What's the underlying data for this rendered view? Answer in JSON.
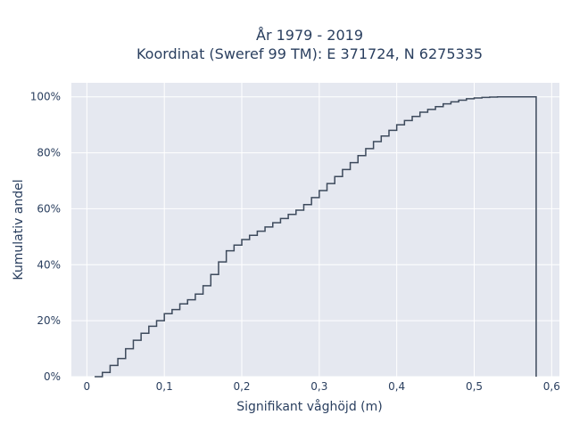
{
  "chart_data": {
    "type": "line",
    "line_shape": "step",
    "title_line1": "År 1979 - 2019",
    "title_line2": "Koordinat (Sweref 99 TM): E 371724, N 6275335",
    "xlabel": "Signifikant våghöjd (m)",
    "ylabel": "Kumulativ andel",
    "xlim": [
      -0.02,
      0.61
    ],
    "ylim": [
      0,
      1.05
    ],
    "x_ticks": [
      0,
      0.1,
      0.2,
      0.3,
      0.4,
      0.5,
      0.6
    ],
    "x_tick_labels": [
      "0",
      "0,1",
      "0,2",
      "0,3",
      "0,4",
      "0,5",
      "0,6"
    ],
    "y_ticks": [
      0,
      0.2,
      0.4,
      0.6,
      0.8,
      1.0
    ],
    "y_tick_labels": [
      "0%",
      "20%",
      "40%",
      "60%",
      "80%",
      "100%"
    ],
    "grid": true,
    "colors": {
      "line": "#3d4a5c",
      "plot_bg": "#e5e8f0",
      "grid": "#ffffff"
    },
    "series": [
      {
        "x": [
          0.01,
          0.02,
          0.03,
          0.04,
          0.05,
          0.06,
          0.07,
          0.08,
          0.09,
          0.1,
          0.11,
          0.12,
          0.13,
          0.14,
          0.15,
          0.16,
          0.17,
          0.18,
          0.19,
          0.2,
          0.21,
          0.22,
          0.23,
          0.24,
          0.25,
          0.26,
          0.27,
          0.28,
          0.29,
          0.3,
          0.31,
          0.32,
          0.33,
          0.34,
          0.35,
          0.36,
          0.37,
          0.38,
          0.39,
          0.4,
          0.41,
          0.42,
          0.43,
          0.44,
          0.45,
          0.46,
          0.47,
          0.48,
          0.49,
          0.5,
          0.51,
          0.52,
          0.53,
          0.54,
          0.55,
          0.56,
          0.57,
          0.58
        ],
        "y": [
          0.0,
          0.015,
          0.04,
          0.065,
          0.1,
          0.13,
          0.155,
          0.18,
          0.2,
          0.225,
          0.24,
          0.26,
          0.275,
          0.295,
          0.325,
          0.365,
          0.41,
          0.45,
          0.47,
          0.49,
          0.505,
          0.52,
          0.535,
          0.55,
          0.565,
          0.58,
          0.595,
          0.615,
          0.64,
          0.665,
          0.69,
          0.715,
          0.74,
          0.765,
          0.79,
          0.815,
          0.84,
          0.86,
          0.88,
          0.9,
          0.915,
          0.93,
          0.945,
          0.955,
          0.965,
          0.975,
          0.982,
          0.988,
          0.993,
          0.996,
          0.998,
          0.999,
          1.0,
          1.0,
          1.0,
          1.0,
          1.0,
          0.0
        ]
      }
    ]
  }
}
